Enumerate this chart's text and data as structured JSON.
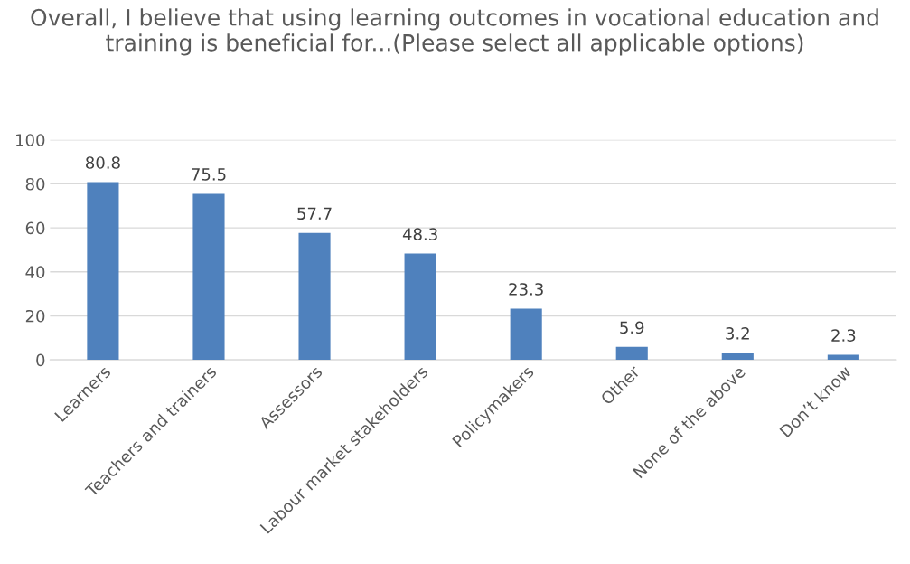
{
  "chart_data": {
    "type": "bar",
    "title": "Overall, I believe that using learning outcomes in vocational education and training is beneficial for...(Please select all applicable options)",
    "categories": [
      "Learners",
      "Teachers and trainers",
      "Assessors",
      "Labour market stakeholders",
      "Policymakers",
      "Other",
      "None of the above",
      "Don’t know"
    ],
    "values": [
      80.8,
      75.5,
      57.7,
      48.3,
      23.3,
      5.9,
      3.2,
      2.3
    ],
    "color": "#4f81bd",
    "ylim": [
      0,
      100
    ],
    "yticks": [
      0,
      20,
      40,
      60,
      80,
      100
    ],
    "grid": "y",
    "data_labels": true,
    "legend": false
  }
}
